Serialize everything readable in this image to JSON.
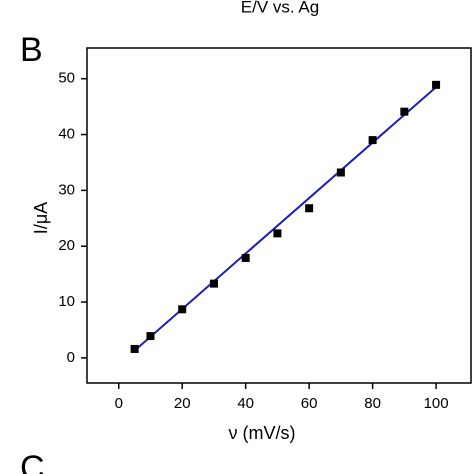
{
  "chart_data": {
    "type": "scatter",
    "top_caption": "E/V vs. Ag",
    "panel_label": "B",
    "next_panel_label": "C",
    "x_label": "ν (mV/s)",
    "y_label": "I/μA",
    "x": [
      5,
      10,
      20,
      30,
      40,
      50,
      60,
      70,
      80,
      90,
      100
    ],
    "values": [
      1.6,
      3.9,
      8.7,
      13.3,
      17.9,
      22.3,
      26.8,
      33.2,
      39.0,
      44.1,
      48.9
    ],
    "color": "#000000",
    "fit": {
      "x": [
        5,
        100
      ],
      "values": [
        1.3,
        48.5
      ],
      "color": "#1f1fb4"
    },
    "xlim": [
      -10,
      111
    ],
    "ylim": [
      -4.5,
      55.5
    ],
    "xticks": [
      0,
      20,
      40,
      60,
      80,
      100
    ],
    "yticks": [
      0,
      10,
      20,
      30,
      40,
      50
    ]
  }
}
